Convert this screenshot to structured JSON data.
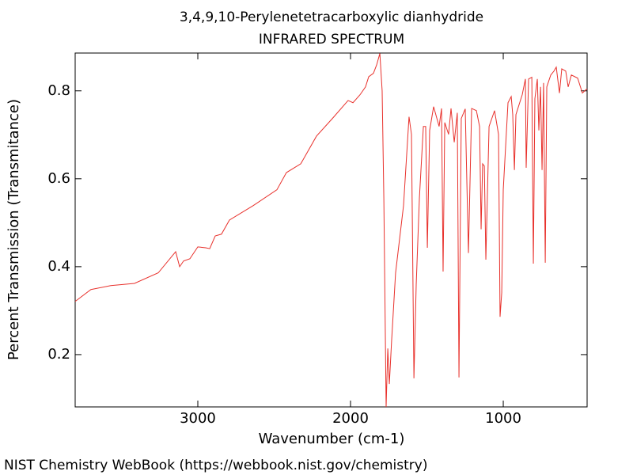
{
  "chart_data": {
    "type": "line",
    "title": "3,4,9,10-Perylenetetracarboxylic dianhydride",
    "subtitle": "INFRARED SPECTRUM",
    "xlabel": "Wavenumber (cm-1)",
    "ylabel": "Percent Transmission (Transmitance)",
    "color": "#e8312c",
    "xlim": [
      3803,
      451
    ],
    "ylim": [
      0.081,
      0.886
    ],
    "xticks": [
      3000,
      2000,
      1000
    ],
    "yticks": [
      0.2,
      0.4,
      0.6,
      0.8
    ],
    "x": [
      3803,
      3700,
      3570,
      3415,
      3259,
      3145,
      3119,
      3093,
      3052,
      3000,
      2948,
      2922,
      2886,
      2845,
      2793,
      2637,
      2482,
      2420,
      2326,
      2223,
      2119,
      2016,
      1984,
      1938,
      1902,
      1881,
      1850,
      1829,
      1808,
      1793,
      1782,
      1767,
      1756,
      1746,
      1731,
      1705,
      1653,
      1617,
      1601,
      1585,
      1570,
      1549,
      1523,
      1508,
      1497,
      1482,
      1456,
      1420,
      1404,
      1394,
      1383,
      1358,
      1342,
      1321,
      1301,
      1290,
      1275,
      1249,
      1228,
      1207,
      1176,
      1155,
      1145,
      1135,
      1124,
      1114,
      1093,
      1057,
      1031,
      1021,
      1010,
      1000,
      969,
      948,
      938,
      927,
      917,
      876,
      855,
      850,
      834,
      813,
      803,
      793,
      777,
      767,
      756,
      746,
      736,
      725,
      715,
      689,
      668,
      653,
      632,
      617,
      591,
      575,
      554,
      513,
      482,
      451
    ],
    "values": [
      0.321,
      0.348,
      0.357,
      0.362,
      0.386,
      0.434,
      0.4,
      0.413,
      0.418,
      0.445,
      0.443,
      0.441,
      0.47,
      0.474,
      0.506,
      0.539,
      0.575,
      0.614,
      0.634,
      0.697,
      0.737,
      0.778,
      0.773,
      0.791,
      0.809,
      0.832,
      0.84,
      0.859,
      0.885,
      0.8,
      0.557,
      0.081,
      0.214,
      0.133,
      0.232,
      0.386,
      0.539,
      0.741,
      0.701,
      0.146,
      0.359,
      0.557,
      0.719,
      0.719,
      0.443,
      0.71,
      0.764,
      0.719,
      0.76,
      0.389,
      0.728,
      0.701,
      0.76,
      0.683,
      0.75,
      0.148,
      0.737,
      0.759,
      0.431,
      0.76,
      0.755,
      0.719,
      0.485,
      0.634,
      0.629,
      0.416,
      0.719,
      0.755,
      0.701,
      0.286,
      0.341,
      0.575,
      0.773,
      0.787,
      0.746,
      0.62,
      0.746,
      0.791,
      0.827,
      0.625,
      0.827,
      0.831,
      0.407,
      0.782,
      0.827,
      0.71,
      0.809,
      0.62,
      0.818,
      0.409,
      0.809,
      0.836,
      0.845,
      0.854,
      0.795,
      0.85,
      0.845,
      0.809,
      0.836,
      0.829,
      0.795,
      0.805
    ]
  },
  "footer": "NIST Chemistry WebBook (https://webbook.nist.gov/chemistry)"
}
